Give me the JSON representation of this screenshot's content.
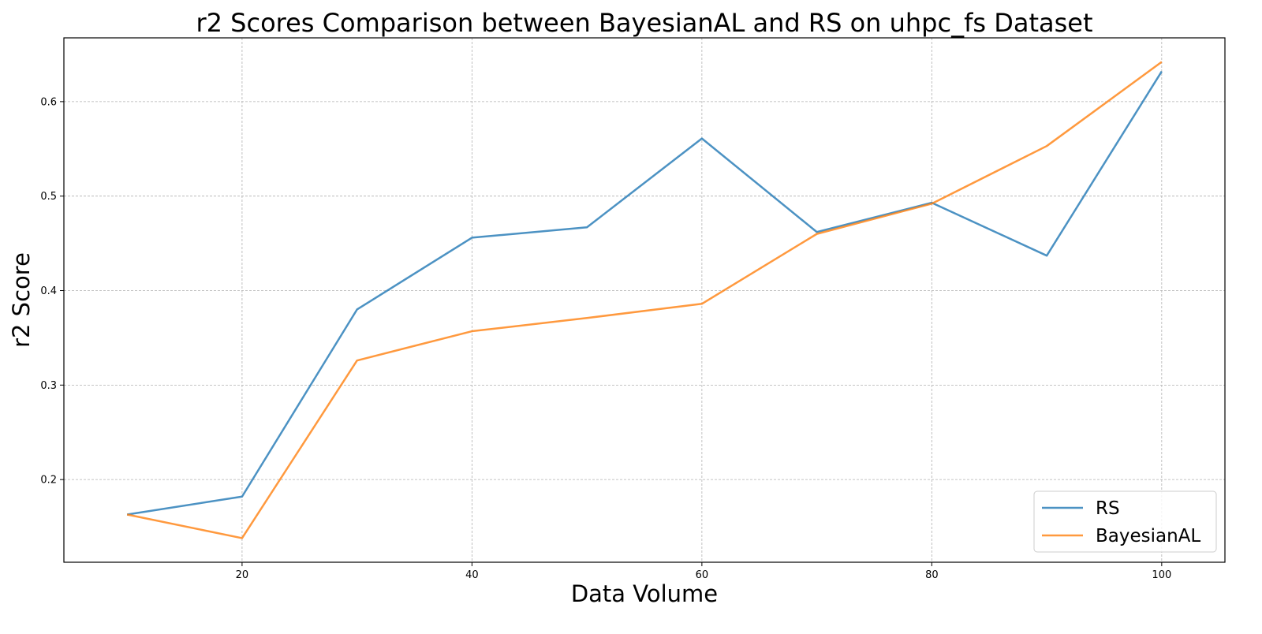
{
  "chart_data": {
    "type": "line",
    "title": "r2 Scores Comparison between BayesianAL and RS on uhpc_fs Dataset",
    "xlabel": "Data Volume",
    "ylabel": "r2 Score",
    "x": [
      10,
      20,
      30,
      40,
      50,
      60,
      70,
      80,
      90,
      100
    ],
    "xlim": [
      4.5,
      105.5
    ],
    "ylim": [
      0.1125,
      0.6675
    ],
    "xticks": [
      20,
      40,
      60,
      80,
      100
    ],
    "yticks": [
      0.2,
      0.3,
      0.4,
      0.5,
      0.6
    ],
    "xtick_labels": [
      "20",
      "40",
      "60",
      "80",
      "100"
    ],
    "ytick_labels": [
      "0.2",
      "0.3",
      "0.4",
      "0.5",
      "0.6"
    ],
    "grid": true,
    "legend_position": "lower-right",
    "series": [
      {
        "name": "RS",
        "color": "#1f77b4",
        "values": [
          0.163,
          0.182,
          0.38,
          0.456,
          0.467,
          0.561,
          0.462,
          0.493,
          0.437,
          0.632
        ]
      },
      {
        "name": "BayesianAL",
        "color": "#ff7f0e",
        "values": [
          0.163,
          0.138,
          0.326,
          0.357,
          0.371,
          0.386,
          0.46,
          0.492,
          0.553,
          0.642
        ]
      }
    ]
  }
}
